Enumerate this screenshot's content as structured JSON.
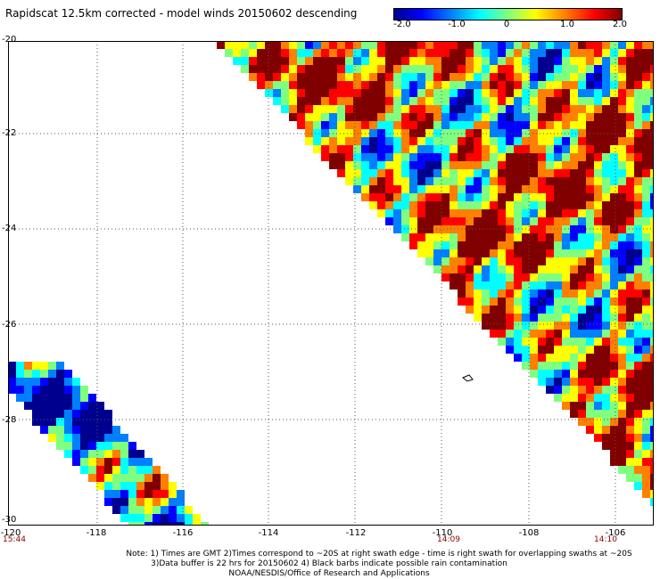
{
  "title": "Rapidscat 12.5km corrected - model winds 20150602 descending",
  "colorbar": {
    "ticks": [
      "-2.0",
      "-1.0",
      "0",
      "1.0",
      "2.0"
    ],
    "colors": [
      "#00008f",
      "#0000ff",
      "#0080ff",
      "#00ffff",
      "#7fff7f",
      "#ffff00",
      "#ff8000",
      "#ff0000",
      "#800000"
    ]
  },
  "axes": {
    "lat_labels": [
      "-20",
      "-22",
      "-24",
      "-26",
      "-28",
      "-30"
    ],
    "lon_labels": [
      "-120",
      "-118",
      "-116",
      "-114",
      "-112",
      "-110",
      "-108",
      "-106"
    ],
    "lat_range": [
      -30,
      -20
    ],
    "lon_range": [
      -120,
      -105
    ]
  },
  "times": {
    "left": "15:44",
    "middle": "14:09",
    "right": "14:10"
  },
  "notes": {
    "line1": "Note: 1) Times are GMT 2)Times correspond to ~20S at right swath edge - time is right swath for overlapping swaths at ~20S",
    "line2": "3)Data buffer is 22 hrs for 20150602 4) Black barbs indicate possible rain contamination",
    "line3": "NOAA/NESDIS/Office of Research and Applications"
  }
}
